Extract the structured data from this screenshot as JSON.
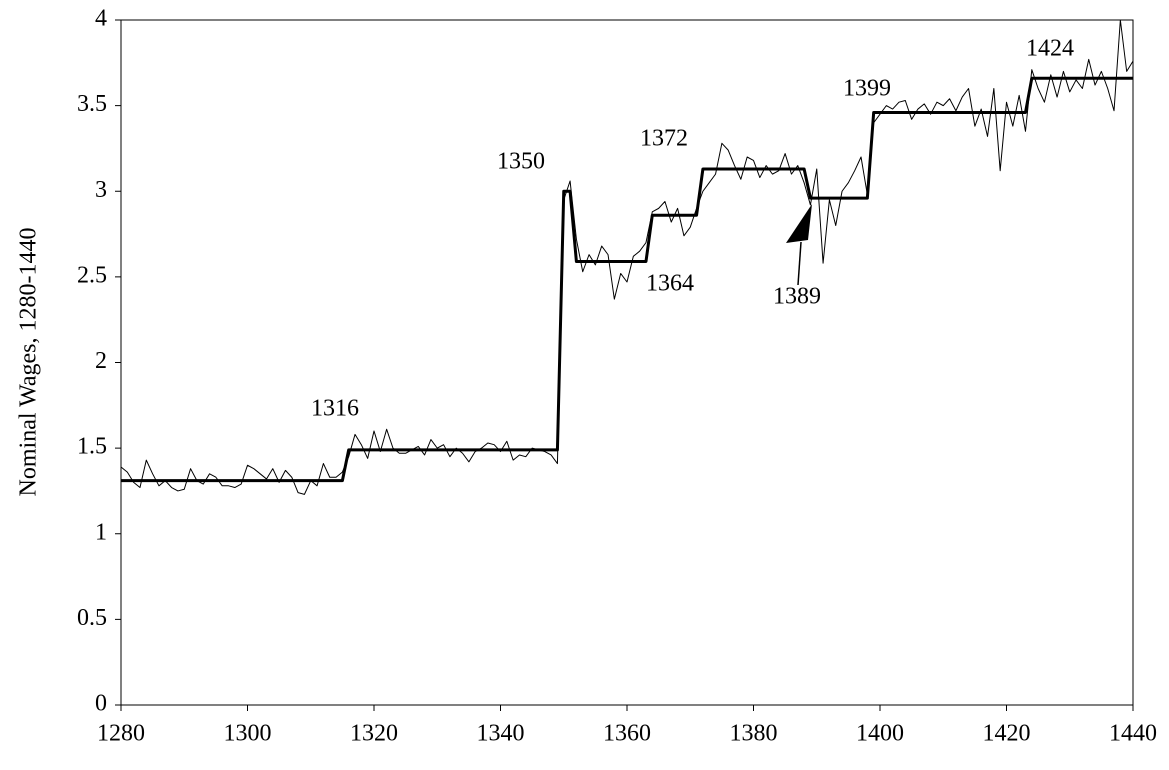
{
  "chart_data": {
    "type": "line",
    "y_label": "Nominal Wages, 1280-1440",
    "xlim": [
      1280,
      1440
    ],
    "ylim": [
      0,
      4
    ],
    "xticks": [
      1280,
      1300,
      1320,
      1340,
      1360,
      1380,
      1400,
      1420,
      1440
    ],
    "yticks": [
      0,
      0.5,
      1,
      1.5,
      2,
      2.5,
      3,
      3.5,
      4
    ],
    "x": [
      1280,
      1281,
      1282,
      1283,
      1284,
      1285,
      1286,
      1287,
      1288,
      1289,
      1290,
      1291,
      1292,
      1293,
      1294,
      1295,
      1296,
      1297,
      1298,
      1299,
      1300,
      1301,
      1302,
      1303,
      1304,
      1305,
      1306,
      1307,
      1308,
      1309,
      1310,
      1311,
      1312,
      1313,
      1314,
      1315,
      1316,
      1317,
      1318,
      1319,
      1320,
      1321,
      1322,
      1323,
      1324,
      1325,
      1326,
      1327,
      1328,
      1329,
      1330,
      1331,
      1332,
      1333,
      1334,
      1335,
      1336,
      1337,
      1338,
      1339,
      1340,
      1341,
      1342,
      1343,
      1344,
      1345,
      1346,
      1347,
      1348,
      1349,
      1350,
      1351,
      1352,
      1353,
      1354,
      1355,
      1356,
      1357,
      1358,
      1359,
      1360,
      1361,
      1362,
      1363,
      1364,
      1365,
      1366,
      1367,
      1368,
      1369,
      1370,
      1371,
      1372,
      1373,
      1374,
      1375,
      1376,
      1377,
      1378,
      1379,
      1380,
      1381,
      1382,
      1383,
      1384,
      1385,
      1386,
      1387,
      1388,
      1389,
      1390,
      1391,
      1392,
      1393,
      1394,
      1395,
      1396,
      1397,
      1398,
      1399,
      1400,
      1401,
      1402,
      1403,
      1404,
      1405,
      1406,
      1407,
      1408,
      1409,
      1410,
      1411,
      1412,
      1413,
      1414,
      1415,
      1416,
      1417,
      1418,
      1419,
      1420,
      1421,
      1422,
      1423,
      1424,
      1425,
      1426,
      1427,
      1428,
      1429,
      1430,
      1431,
      1432,
      1433,
      1434,
      1435,
      1436,
      1437,
      1438,
      1439,
      1440
    ],
    "series": [
      {
        "color": "#000000",
        "width": 1,
        "values": [
          1.39,
          1.36,
          1.3,
          1.27,
          1.43,
          1.35,
          1.28,
          1.31,
          1.27,
          1.25,
          1.26,
          1.38,
          1.31,
          1.29,
          1.35,
          1.33,
          1.28,
          1.28,
          1.27,
          1.29,
          1.4,
          1.38,
          1.35,
          1.32,
          1.38,
          1.3,
          1.37,
          1.33,
          1.24,
          1.23,
          1.31,
          1.28,
          1.41,
          1.33,
          1.33,
          1.36,
          1.45,
          1.58,
          1.52,
          1.44,
          1.6,
          1.48,
          1.61,
          1.5,
          1.47,
          1.47,
          1.49,
          1.51,
          1.46,
          1.55,
          1.5,
          1.52,
          1.45,
          1.5,
          1.47,
          1.42,
          1.48,
          1.5,
          1.53,
          1.52,
          1.48,
          1.54,
          1.43,
          1.46,
          1.45,
          1.5,
          1.49,
          1.48,
          1.46,
          1.41,
          2.95,
          3.06,
          2.72,
          2.53,
          2.63,
          2.57,
          2.68,
          2.63,
          2.37,
          2.52,
          2.47,
          2.62,
          2.65,
          2.7,
          2.88,
          2.9,
          2.94,
          2.82,
          2.9,
          2.74,
          2.79,
          2.9,
          3.0,
          3.05,
          3.1,
          3.28,
          3.24,
          3.15,
          3.07,
          3.2,
          3.18,
          3.08,
          3.15,
          3.1,
          3.12,
          3.22,
          3.1,
          3.15,
          3.05,
          2.92,
          3.13,
          2.58,
          2.95,
          2.8,
          3.0,
          3.05,
          3.12,
          3.2,
          2.98,
          3.4,
          3.45,
          3.5,
          3.48,
          3.52,
          3.53,
          3.42,
          3.48,
          3.51,
          3.45,
          3.52,
          3.5,
          3.54,
          3.47,
          3.55,
          3.6,
          3.38,
          3.48,
          3.32,
          3.6,
          3.12,
          3.52,
          3.38,
          3.56,
          3.35,
          3.71,
          3.6,
          3.52,
          3.68,
          3.55,
          3.7,
          3.58,
          3.65,
          3.6,
          3.77,
          3.62,
          3.7,
          3.6,
          3.47,
          4.0,
          3.7,
          3.76
        ]
      },
      {
        "color": "#000000",
        "width": 3,
        "x": [
          1280,
          1315,
          1316,
          1349,
          1350,
          1351,
          1352,
          1363,
          1364,
          1371,
          1372,
          1388,
          1389,
          1398,
          1399,
          1423,
          1424,
          1440
        ],
        "values": [
          1.31,
          1.31,
          1.49,
          1.49,
          3.0,
          3.0,
          2.59,
          2.59,
          2.86,
          2.86,
          3.13,
          3.13,
          2.96,
          2.96,
          3.46,
          3.46,
          3.66,
          3.66
        ]
      }
    ],
    "annotations": [
      "1316",
      "1350",
      "1364",
      "1372",
      "1389",
      "1399",
      "1424"
    ]
  }
}
